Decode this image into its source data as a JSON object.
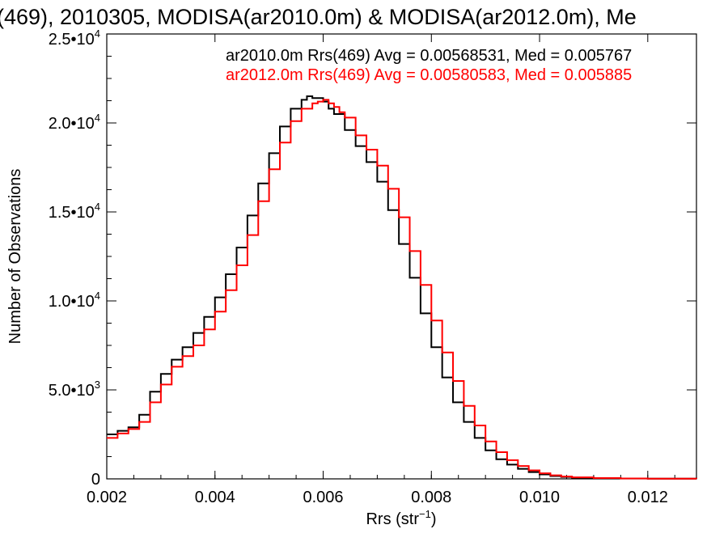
{
  "chart_data": {
    "type": "line",
    "title": "(469), 2010305, MODISA(ar2010.0m) & MODISA(ar2012.0m), Me",
    "xlabel": "Rrs (str",
    "xlabel_sup": "−1",
    "xlabel_end": ")",
    "ylabel": "Number of Observations",
    "xlim": [
      0.002,
      0.0129
    ],
    "ylim": [
      0,
      25000
    ],
    "x_ticks": [
      {
        "value": 0.002,
        "label": "0.002"
      },
      {
        "value": 0.004,
        "label": "0.004"
      },
      {
        "value": 0.006,
        "label": "0.006"
      },
      {
        "value": 0.008,
        "label": "0.008"
      },
      {
        "value": 0.01,
        "label": "0.010"
      },
      {
        "value": 0.012,
        "label": "0.012"
      }
    ],
    "y_ticks": [
      {
        "value": 0,
        "mant": "0",
        "exp": ""
      },
      {
        "value": 5000,
        "mant": "5.0•10",
        "exp": "3"
      },
      {
        "value": 10000,
        "mant": "1.0•10",
        "exp": "4"
      },
      {
        "value": 15000,
        "mant": "1.5•10",
        "exp": "4"
      },
      {
        "value": 20000,
        "mant": "2.0•10",
        "exp": "4"
      },
      {
        "value": 25000,
        "mant": "2.5•10",
        "exp": "4"
      }
    ],
    "grid": false,
    "legend_placement": "top-right",
    "series": [
      {
        "name": "ar2010.0m Rrs(469) Avg = 0.00568531, Med = 0.005767",
        "color": "#000000",
        "x": [
          0.002,
          0.0022,
          0.0024,
          0.0026,
          0.0028,
          0.003,
          0.0032,
          0.0034,
          0.0036,
          0.0038,
          0.004,
          0.0042,
          0.0044,
          0.0046,
          0.0048,
          0.005,
          0.0052,
          0.0054,
          0.0056,
          0.0057,
          0.0058,
          0.0059,
          0.006,
          0.0061,
          0.0062,
          0.0064,
          0.0066,
          0.0068,
          0.007,
          0.0072,
          0.0074,
          0.0076,
          0.0078,
          0.008,
          0.0082,
          0.0084,
          0.0086,
          0.0088,
          0.009,
          0.0092,
          0.0094,
          0.0096,
          0.0098,
          0.01,
          0.0102,
          0.0104,
          0.0106,
          0.011,
          0.0115,
          0.012,
          0.0129
        ],
        "y": [
          2500,
          2700,
          2900,
          3600,
          4900,
          5900,
          6700,
          7400,
          8200,
          9100,
          10200,
          11500,
          13000,
          14800,
          16600,
          18300,
          19800,
          20800,
          21300,
          21500,
          21400,
          21400,
          21200,
          20800,
          20500,
          19600,
          18700,
          17800,
          16700,
          15100,
          13200,
          11300,
          9300,
          7400,
          5700,
          4300,
          3200,
          2300,
          1600,
          1100,
          800,
          560,
          380,
          250,
          160,
          110,
          70,
          40,
          20,
          10,
          0
        ]
      },
      {
        "name": "ar2012.0m Rrs(469) Avg = 0.00580583, Med = 0.005885",
        "color": "#ff0000",
        "x": [
          0.002,
          0.0022,
          0.0024,
          0.0026,
          0.0028,
          0.003,
          0.0032,
          0.0034,
          0.0036,
          0.0038,
          0.004,
          0.0042,
          0.0044,
          0.0046,
          0.0048,
          0.005,
          0.0052,
          0.0054,
          0.0056,
          0.0058,
          0.0059,
          0.006,
          0.0061,
          0.0062,
          0.0063,
          0.0064,
          0.0066,
          0.0068,
          0.007,
          0.0072,
          0.0074,
          0.0076,
          0.0078,
          0.008,
          0.0082,
          0.0084,
          0.0086,
          0.0088,
          0.009,
          0.0092,
          0.0094,
          0.0096,
          0.0098,
          0.01,
          0.0102,
          0.0104,
          0.0106,
          0.011,
          0.0115,
          0.012,
          0.0129
        ],
        "y": [
          2300,
          2550,
          2800,
          3200,
          4300,
          5300,
          6300,
          6900,
          7500,
          8400,
          9400,
          10600,
          12000,
          13700,
          15600,
          17400,
          18900,
          20100,
          20800,
          21100,
          21200,
          21300,
          21100,
          20900,
          20600,
          20300,
          19300,
          18500,
          17600,
          16300,
          14700,
          12800,
          10900,
          8900,
          7100,
          5500,
          4100,
          3000,
          2100,
          1500,
          1050,
          720,
          480,
          310,
          200,
          130,
          85,
          45,
          20,
          10,
          0
        ]
      }
    ]
  }
}
